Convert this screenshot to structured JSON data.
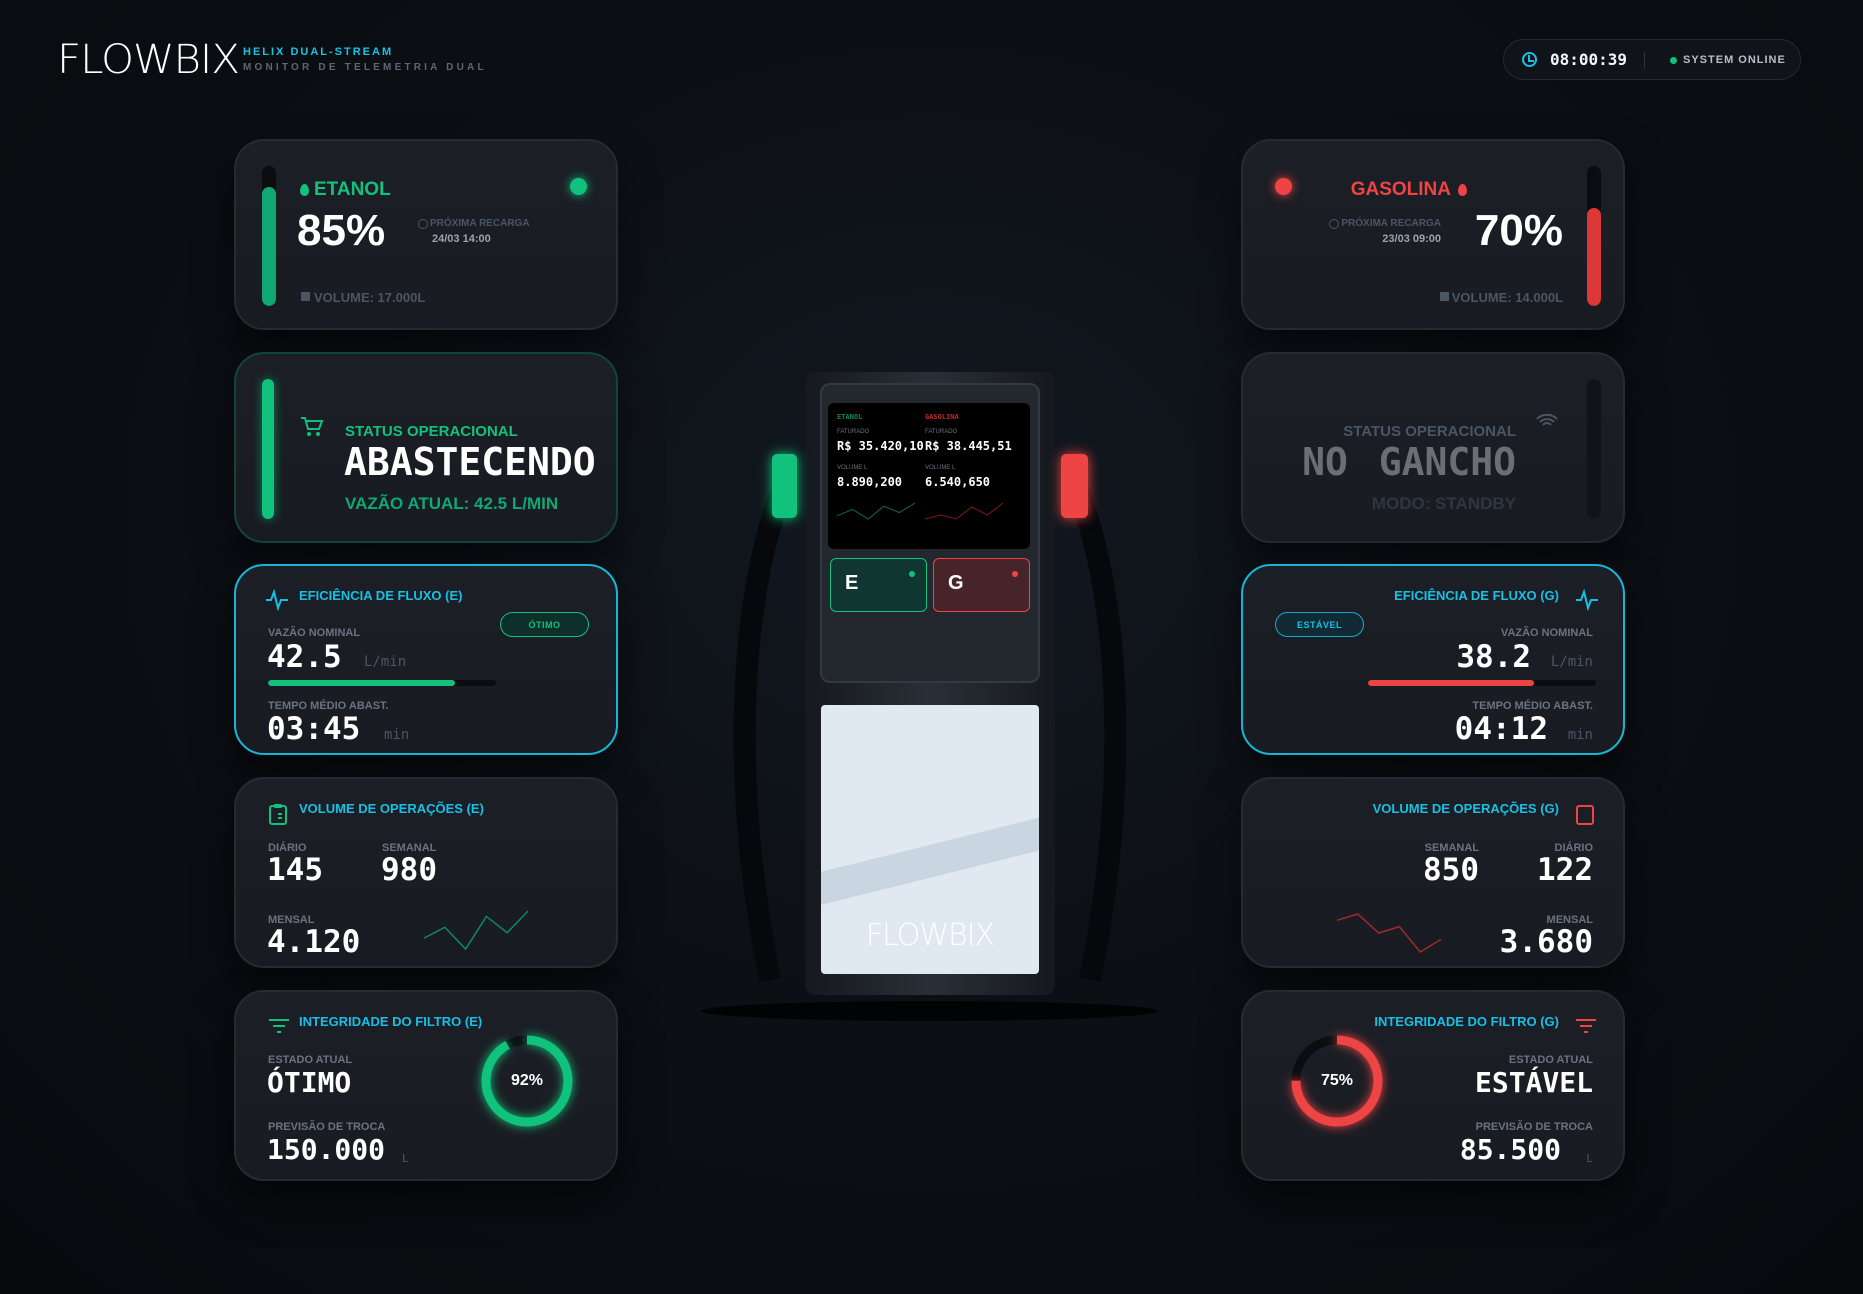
{
  "header": {
    "logo": "FLOWBIX",
    "product": "HELIX DUAL-STREAM",
    "subtitle": "MONITOR DE TELEMETRIA DUAL",
    "time": "08:00:39",
    "system_status": "SYSTEM ONLINE"
  },
  "colors": {
    "etanol": "#10c27c",
    "gasolina": "#ef4444",
    "accent": "#17c0e4",
    "background": "#0b0e13"
  },
  "etanol": {
    "tank": {
      "name": "ETANOL",
      "level_label": "85%",
      "level": 85,
      "next_label": "PRÓXIMA RECARGA",
      "next_date": "24/03 14:00",
      "volume": "VOLUME: 17.000L",
      "indicator": "active"
    },
    "status": {
      "label": "STATUS OPERACIONAL",
      "value": "ABASTECENDO",
      "detail": "VAZÃO ATUAL: 42.5 L/MIN",
      "icon": "cart-icon"
    },
    "efficiency": {
      "title": "EFICIÊNCIA DE FLUXO (E)",
      "badge": "ÓTIMO",
      "nominal_label": "VAZÃO NOMINAL",
      "nominal": "42.5",
      "nominal_unit": "L/min",
      "nominal_fill_pct": 82,
      "time_label": "TEMPO MÉDIO ABAST.",
      "time": "03:45",
      "time_unit": "min"
    },
    "volume": {
      "title": "VOLUME DE OPERAÇÕES (E)",
      "daily_label": "DIÁRIO",
      "daily": "145",
      "weekly_label": "SEMANAL",
      "weekly": "980",
      "monthly_label": "MENSAL",
      "monthly": "4.120",
      "trend": [
        3,
        5,
        1,
        7,
        4,
        8
      ]
    },
    "filter": {
      "title": "INTEGRIDADE DO FILTRO (E)",
      "state_label": "ESTADO ATUAL",
      "state": "ÓTIMO",
      "forecast_label": "PREVISÃO DE TROCA",
      "forecast": "150.000",
      "forecast_unit": "L",
      "integrity_label": "92%",
      "integrity": 92
    }
  },
  "gasolina": {
    "tank": {
      "name": "GASOLINA",
      "level_label": "70%",
      "level": 70,
      "next_label": "PRÓXIMA RECARGA",
      "next_date": "23/03 09:00",
      "volume": "VOLUME: 14.000L",
      "indicator": "active"
    },
    "status": {
      "label": "STATUS OPERACIONAL",
      "value": "NO GANCHO",
      "detail": "MODO: STANDBY",
      "icon": "wifi-icon"
    },
    "efficiency": {
      "title": "EFICIÊNCIA DE FLUXO (G)",
      "badge": "ESTÁVEL",
      "nominal_label": "VAZÃO NOMINAL",
      "nominal": "38.2",
      "nominal_unit": "L/min",
      "nominal_fill_pct": 73,
      "time_label": "TEMPO MÉDIO ABAST.",
      "time": "04:12",
      "time_unit": "min"
    },
    "volume": {
      "title": "VOLUME DE OPERAÇÕES (G)",
      "weekly_label": "SEMANAL",
      "weekly": "850",
      "daily_label": "DIÁRIO",
      "daily": "122",
      "monthly_label": "MENSAL",
      "monthly": "3.680",
      "trend": [
        6,
        7,
        4,
        5,
        1,
        3
      ]
    },
    "filter": {
      "title": "INTEGRIDADE DO FILTRO (G)",
      "state_label": "ESTADO ATUAL",
      "state": "ESTÁVEL",
      "forecast_label": "PREVISÃO DE TROCA",
      "forecast": "85.500",
      "forecast_unit": "L",
      "integrity_label": "75%",
      "integrity": 75
    }
  },
  "pump": {
    "screen": {
      "etanol": {
        "name": "ETANOL",
        "billed_label": "FATURADO",
        "billed": "R$ 35.420,10",
        "volume_label": "VOLUME L",
        "volume": "8.890,200",
        "trend": [
          2,
          4,
          1,
          5,
          3,
          6
        ]
      },
      "gasolina": {
        "name": "GASOLINA",
        "billed_label": "FATURADO",
        "billed": "R$ 38.445,51",
        "volume_label": "VOLUME L",
        "volume": "6.540,650",
        "trend": [
          2,
          3,
          2,
          5,
          3,
          6
        ]
      }
    },
    "button_e": "E",
    "button_g": "G",
    "panel_logo": "FLOWBIX"
  }
}
